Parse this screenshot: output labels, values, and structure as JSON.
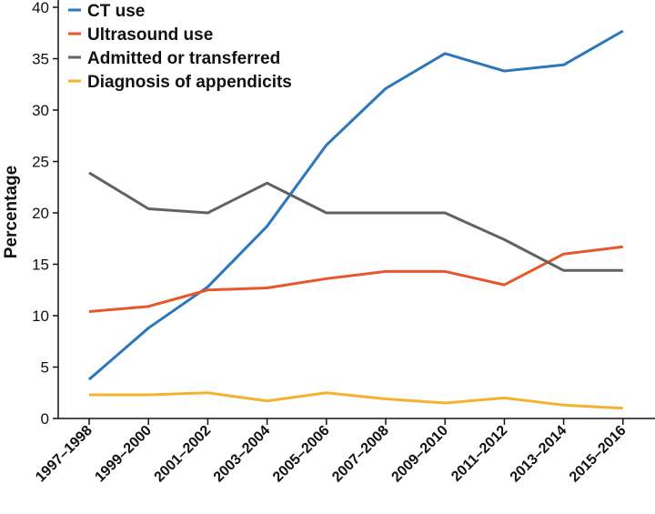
{
  "chart_data": {
    "type": "line",
    "title": "",
    "xlabel": "",
    "ylabel": "Percentage",
    "ylim": [
      0,
      40
    ],
    "yticks": [
      0,
      5,
      10,
      15,
      20,
      25,
      30,
      35,
      40
    ],
    "grid": false,
    "legend_position": "top-left",
    "categories": [
      "1997–1998",
      "1999–2000",
      "2001–2002",
      "2003–2004",
      "2005–2006",
      "2007–2008",
      "2009–2010",
      "2011–2012",
      "2013–2014",
      "2015–2016"
    ],
    "series": [
      {
        "name": "CT use",
        "color": "#2a77be",
        "values": [
          3.8,
          8.8,
          12.8,
          18.7,
          26.6,
          32.1,
          35.5,
          33.8,
          34.4,
          37.7
        ]
      },
      {
        "name": "Ultrasound use",
        "color": "#e8562a",
        "values": [
          10.4,
          10.9,
          12.5,
          12.7,
          13.6,
          14.3,
          14.3,
          13.0,
          16.0,
          16.7
        ]
      },
      {
        "name": "Admitted or transferred",
        "color": "#626262",
        "values": [
          23.9,
          20.4,
          20.0,
          22.9,
          20.0,
          20.0,
          20.0,
          17.4,
          14.4,
          14.4
        ]
      },
      {
        "name": "Diagnosis of appendicits",
        "color": "#f7b12f",
        "values": [
          2.3,
          2.3,
          2.5,
          1.7,
          2.5,
          1.9,
          1.5,
          2.0,
          1.3,
          1.0
        ]
      }
    ]
  }
}
